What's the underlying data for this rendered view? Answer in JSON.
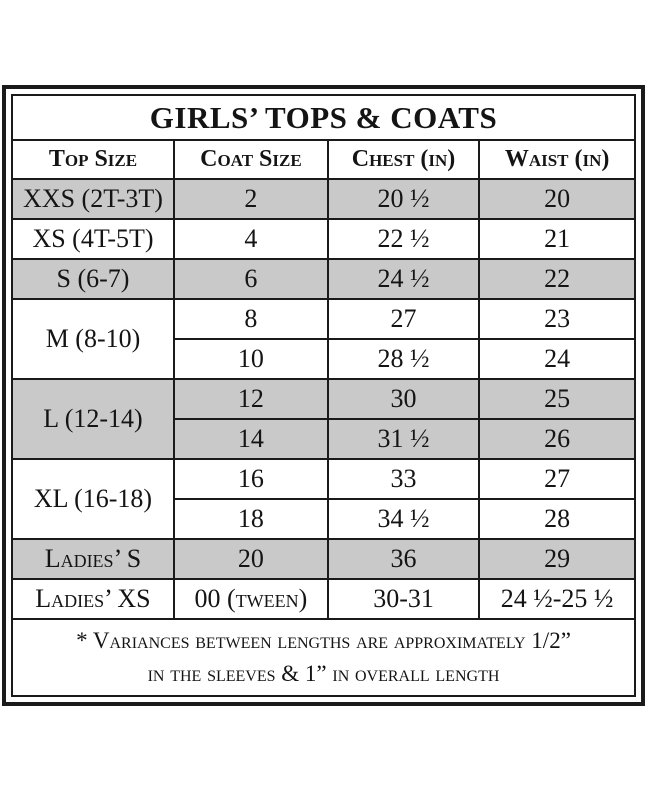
{
  "page": {
    "background": "#ffffff"
  },
  "size_chart": {
    "title": "GIRLS’ TOPS & COATS",
    "columns": [
      "Top Size",
      "Coat Size",
      "Chest (in)",
      "Waist (in)"
    ],
    "groups": [
      {
        "top_size": "XXS (2T-3T)",
        "shaded": true,
        "rows": [
          [
            "2",
            "20 ½",
            "20"
          ]
        ]
      },
      {
        "top_size": "XS (4T-5T)",
        "shaded": false,
        "rows": [
          [
            "4",
            "22 ½",
            "21"
          ]
        ]
      },
      {
        "top_size": "S (6-7)",
        "shaded": true,
        "rows": [
          [
            "6",
            "24 ½",
            "22"
          ]
        ]
      },
      {
        "top_size": "M (8-10)",
        "shaded": false,
        "rows": [
          [
            "8",
            "27",
            "23"
          ],
          [
            "10",
            "28 ½",
            "24"
          ]
        ]
      },
      {
        "top_size": "L (12-14)",
        "shaded": true,
        "rows": [
          [
            "12",
            "30",
            "25"
          ],
          [
            "14",
            "31 ½",
            "26"
          ]
        ]
      },
      {
        "top_size": "XL (16-18)",
        "shaded": false,
        "rows": [
          [
            "16",
            "33",
            "27"
          ],
          [
            "18",
            "34 ½",
            "28"
          ]
        ]
      },
      {
        "top_size": "Ladies’ S",
        "shaded": true,
        "rows": [
          [
            "20",
            "36",
            "29"
          ]
        ]
      },
      {
        "top_size": "Ladies’ XS",
        "shaded": false,
        "rows": [
          [
            "00 (tween)",
            "30-31",
            "24 ½-25 ½"
          ]
        ]
      }
    ],
    "footnote": {
      "line1": "* Variances between lengths are approximately 1/2”",
      "line2": "in the sleeves & 1” in overall length"
    },
    "colors": {
      "shaded_row": "#c9c9c9",
      "border": "#1a1a1a",
      "text": "#141414",
      "background": "#ffffff"
    }
  }
}
